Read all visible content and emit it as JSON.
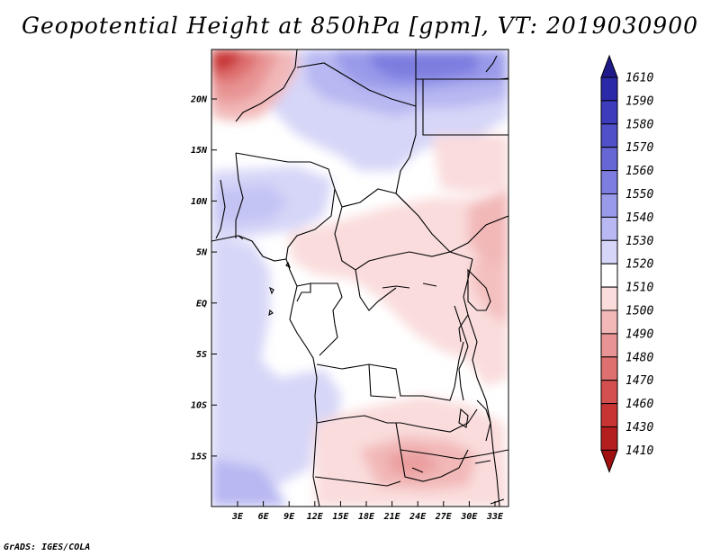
{
  "title": "Geopotential Height at 850hPa [gpm], VT: 2019030900",
  "footer": "GrADS: IGES/COLA",
  "chart_data": {
    "type": "heatmap",
    "title": "Geopotential Height at 850hPa [gpm], VT: 2019030900",
    "variable": "Geopotential Height",
    "level": "850hPa",
    "units": "gpm",
    "valid_time": "2019030900",
    "lon_range": [
      0,
      34
    ],
    "lat_range": [
      -20,
      25
    ],
    "lat_ticks": [
      "20N",
      "15N",
      "10N",
      "5N",
      "EQ",
      "5S",
      "10S",
      "15S"
    ],
    "lon_ticks": [
      "3E",
      "6E",
      "9E",
      "12E",
      "15E",
      "18E",
      "21E",
      "24E",
      "27E",
      "30E",
      "33E"
    ],
    "colorbar": {
      "labels": [
        "1610",
        "1590",
        "1580",
        "1570",
        "1560",
        "1550",
        "1540",
        "1530",
        "1520",
        "1510",
        "1500",
        "1490",
        "1480",
        "1470",
        "1460",
        "1430",
        "1410"
      ],
      "colors": [
        "#1f1a8a",
        "#2a29a8",
        "#3c3cbc",
        "#5050c8",
        "#6666d4",
        "#7d7de0",
        "#9a9aea",
        "#b8b8f2",
        "#d6d6f8",
        "#ffffff",
        "#fadcdc",
        "#f2b8b8",
        "#e89494",
        "#de7070",
        "#d45050",
        "#c83434",
        "#b51e1e",
        "#a01010"
      ]
    }
  }
}
